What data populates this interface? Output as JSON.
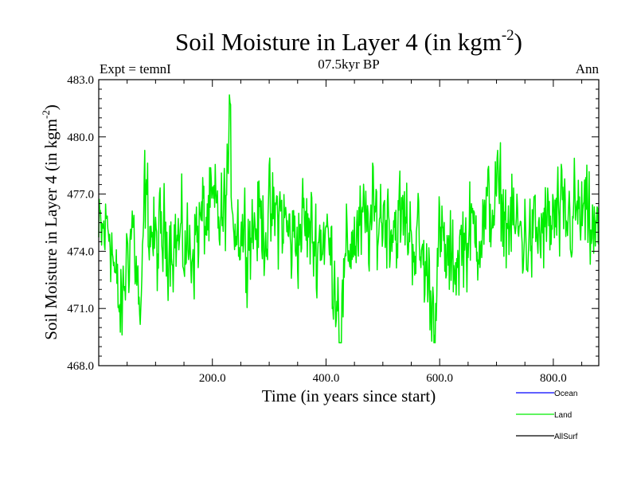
{
  "chart_data": {
    "type": "line",
    "title": "Soil Moisture in Layer 4 (in kgm",
    "title_sup": "-2",
    "title_close": ")",
    "subtitle": "07.5kyr BP",
    "top_left_label": "Expt = temnI",
    "top_right_label": "Ann",
    "xlabel": "Time (in years since start)",
    "ylabel": "Soil Moisture in Layer 4 (in kgm",
    "ylabel_sup": "-2",
    "ylabel_close": ")",
    "xlim": [
      0,
      880
    ],
    "ylim": [
      468.0,
      483.0
    ],
    "x_ticks": [
      200,
      400,
      600,
      800
    ],
    "x_tick_labels": [
      "200.0",
      "400.0",
      "600.0",
      "800.0"
    ],
    "y_ticks": [
      468,
      471,
      474,
      477,
      480,
      483
    ],
    "y_tick_labels": [
      "468.0",
      "471.0",
      "474.0",
      "477.0",
      "480.0",
      "483.0"
    ],
    "series": [
      {
        "name": "Land",
        "color": "#00ee00",
        "anchors_x": [
          0,
          20,
          30,
          40,
          50,
          60,
          75,
          80,
          90,
          100,
          120,
          140,
          160,
          180,
          200,
          220,
          230,
          240,
          260,
          280,
          300,
          320,
          340,
          360,
          380,
          400,
          420,
          425,
          440,
          460,
          480,
          500,
          520,
          540,
          560,
          580,
          590,
          600,
          620,
          640,
          660,
          680,
          700,
          720,
          740,
          760,
          780,
          800,
          820,
          840,
          860,
          880
        ],
        "anchors_y": [
          474.5,
          475.5,
          472.0,
          470.5,
          474.0,
          475.5,
          469.5,
          477.0,
          475.5,
          474.0,
          475.0,
          474.5,
          474.0,
          475.5,
          476.0,
          475.5,
          479.5,
          475.5,
          475.0,
          475.5,
          475.5,
          476.0,
          474.5,
          475.5,
          474.5,
          475.0,
          472.0,
          470.0,
          474.5,
          475.0,
          475.5,
          476.0,
          475.5,
          475.5,
          474.5,
          472.5,
          471.0,
          474.5,
          473.0,
          474.5,
          475.0,
          475.5,
          477.0,
          475.5,
          475.0,
          474.5,
          475.0,
          475.5,
          475.5,
          476.0,
          475.5,
          474.5
        ],
        "noise_amplitude": 1.9,
        "y_min_observed": 469.2,
        "y_max_observed": 482.2
      }
    ],
    "legend": {
      "position": "bottom-right",
      "entries": [
        {
          "label": "Ocean",
          "color": "#0000ff"
        },
        {
          "label": "Land",
          "color": "#00ee00"
        },
        {
          "label": "AllSurf",
          "color": "#000000"
        }
      ]
    }
  }
}
